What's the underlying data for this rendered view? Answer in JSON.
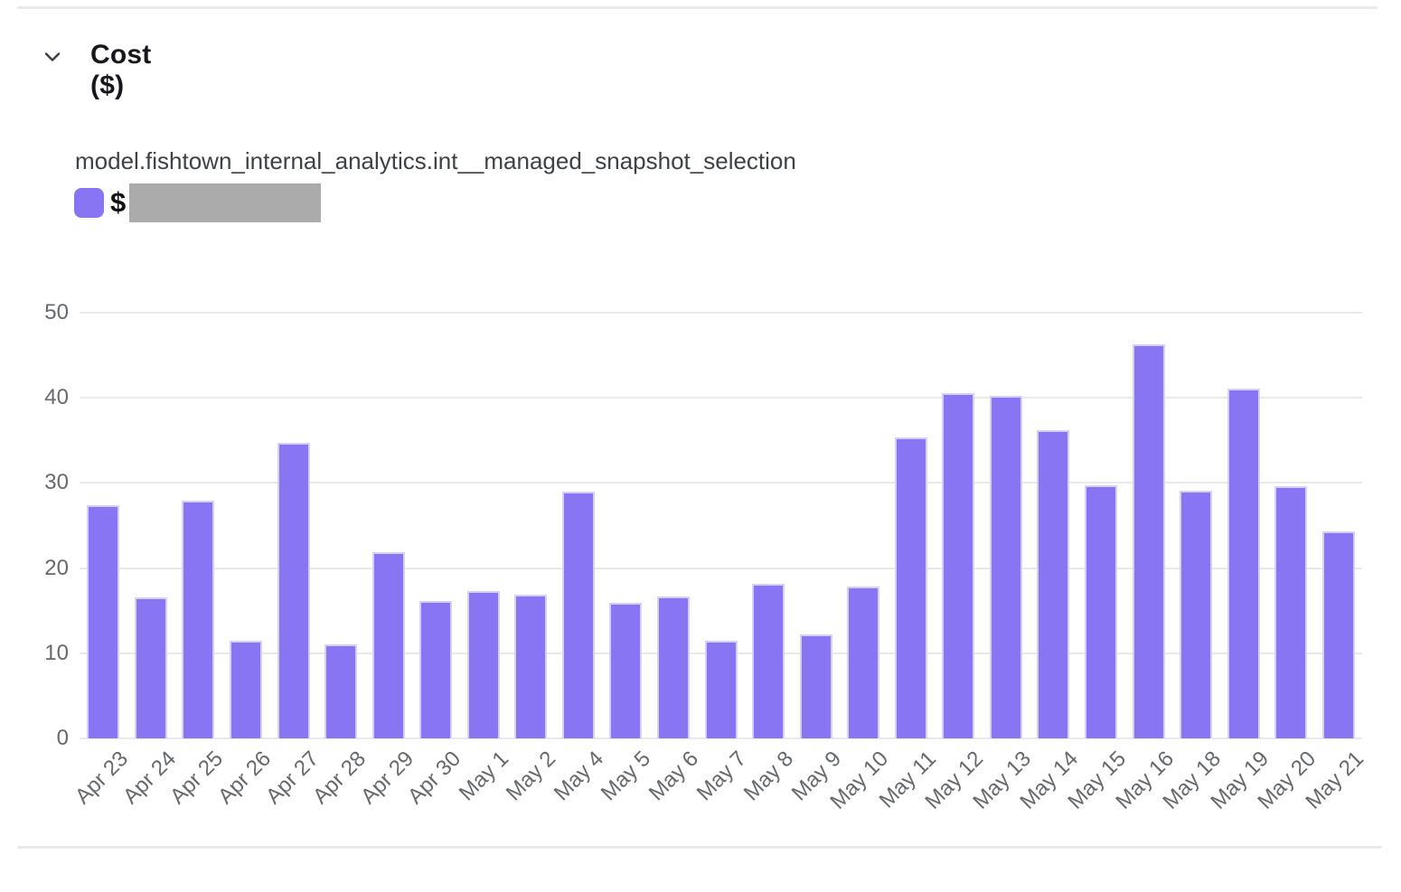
{
  "header": {
    "title": "Cost ($)"
  },
  "legend": {
    "series_name": "model.fishtown_internal_analytics.int__managed_snapshot_selection",
    "value_prefix": "$",
    "value_redacted": true
  },
  "colors": {
    "bar": "#8775F3",
    "redaction": "#ABABAB",
    "grid": "#E9E9EB",
    "axis_text": "#66696D",
    "title_text": "#16181D",
    "series_label_text": "#3D4247",
    "divider": "#E9E9E9",
    "chevron": "#3B4046",
    "dollar_text": "#111111"
  },
  "chart_data": {
    "type": "bar",
    "title": "Cost ($)",
    "series_label": "model.fishtown_internal_analytics.int__managed_snapshot_selection",
    "categories": [
      "Apr 23",
      "Apr 24",
      "Apr 25",
      "Apr 26",
      "Apr 27",
      "Apr 28",
      "Apr 29",
      "Apr 30",
      "May 1",
      "May 2",
      "May 4",
      "May 5",
      "May 6",
      "May 7",
      "May 8",
      "May 9",
      "May 10",
      "May 11",
      "May 12",
      "May 13",
      "May 14",
      "May 15",
      "May 16",
      "May 18",
      "May 19",
      "May 20",
      "May 21"
    ],
    "values": [
      27.4,
      16.6,
      27.9,
      11.5,
      34.7,
      11.0,
      21.9,
      16.1,
      17.3,
      16.9,
      29.0,
      15.9,
      16.7,
      11.5,
      18.1,
      12.2,
      17.8,
      35.3,
      40.5,
      40.2,
      36.2,
      29.7,
      46.3,
      29.1,
      41.1,
      29.6,
      24.3
    ],
    "ylabel": "",
    "xlabel": "",
    "ylim": [
      0,
      50
    ],
    "yticks": [
      0,
      10,
      20,
      30,
      40,
      50
    ],
    "grid": true,
    "legend_position": "top-left"
  }
}
